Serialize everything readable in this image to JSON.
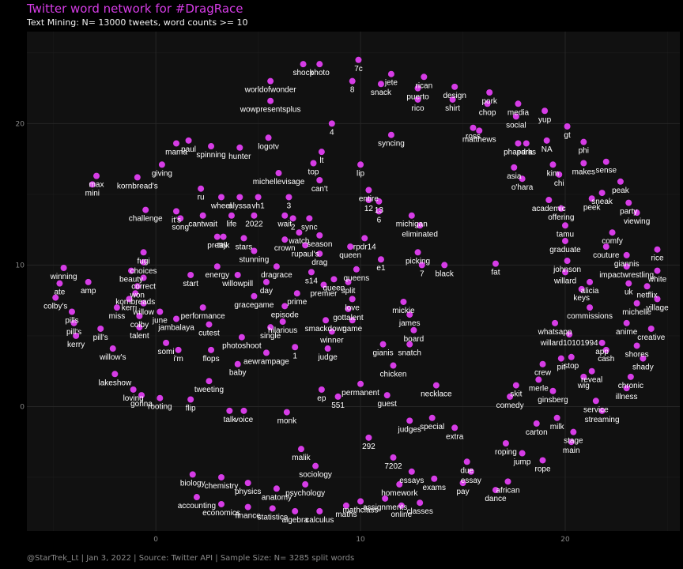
{
  "chart_data": {
    "type": "scatter",
    "title": "Twitter word network for #DragRace",
    "subtitle": "Text Mining:  N= 13000 tweets, word counts >= 10",
    "caption": "@StarTrek_Lt | Jan 3, 2022 | Source: Twitter API | Sample Size: N= 3285 split words",
    "xlim": [
      -6.3,
      25.6
    ],
    "ylim": [
      -8.8,
      26.5
    ],
    "xticks": [
      0,
      10,
      20
    ],
    "yticks": [
      0,
      10,
      20
    ],
    "grid": true,
    "point_color": "#d63ce6",
    "panel_color": "#111111",
    "points": [
      {
        "label": "shock",
        "x": 7.2,
        "y": 24.2
      },
      {
        "label": "photo",
        "x": 8.0,
        "y": 24.2
      },
      {
        "label": "7c",
        "x": 9.9,
        "y": 24.5
      },
      {
        "label": "8",
        "x": 9.6,
        "y": 23.0
      },
      {
        "label": "jete",
        "x": 11.5,
        "y": 23.5
      },
      {
        "label": "snack",
        "x": 11.0,
        "y": 22.8
      },
      {
        "label": "rican",
        "x": 13.1,
        "y": 23.3
      },
      {
        "label": "puerto",
        "x": 12.8,
        "y": 22.5
      },
      {
        "label": "rico",
        "x": 12.8,
        "y": 21.7
      },
      {
        "label": "design",
        "x": 14.6,
        "y": 22.6
      },
      {
        "label": "shirt",
        "x": 14.5,
        "y": 21.7
      },
      {
        "label": "pork",
        "x": 16.3,
        "y": 22.2
      },
      {
        "label": "chop",
        "x": 16.2,
        "y": 21.4
      },
      {
        "label": "media",
        "x": 17.7,
        "y": 21.4
      },
      {
        "label": "social",
        "x": 17.6,
        "y": 20.5
      },
      {
        "label": "yup",
        "x": 19.0,
        "y": 20.9
      },
      {
        "label": "gt",
        "x": 20.1,
        "y": 19.8
      },
      {
        "label": "ross",
        "x": 15.5,
        "y": 19.7
      },
      {
        "label": "matthews",
        "x": 15.8,
        "y": 19.5
      },
      {
        "label": "phaedra",
        "x": 17.7,
        "y": 18.6
      },
      {
        "label": "parks",
        "x": 18.1,
        "y": 18.6
      },
      {
        "label": "NA",
        "x": 19.1,
        "y": 18.8
      },
      {
        "label": "phi",
        "x": 20.9,
        "y": 18.7
      },
      {
        "label": "worldofwonder",
        "x": 5.6,
        "y": 23.0
      },
      {
        "label": "wowpresentsplus",
        "x": 5.6,
        "y": 21.6
      },
      {
        "label": "4",
        "x": 8.6,
        "y": 20.0
      },
      {
        "label": "logotv",
        "x": 5.5,
        "y": 19.0
      },
      {
        "label": "syncing",
        "x": 11.5,
        "y": 19.2
      },
      {
        "label": "paul",
        "x": 1.6,
        "y": 18.8
      },
      {
        "label": "mama",
        "x": 1.0,
        "y": 18.6
      },
      {
        "label": "spinning",
        "x": 2.7,
        "y": 18.4
      },
      {
        "label": "hunter",
        "x": 4.1,
        "y": 18.3
      },
      {
        "label": "lt",
        "x": 8.1,
        "y": 18.0
      },
      {
        "label": "top",
        "x": 7.7,
        "y": 17.2
      },
      {
        "label": "lip",
        "x": 10.0,
        "y": 17.1
      },
      {
        "label": "giving",
        "x": 0.3,
        "y": 17.1
      },
      {
        "label": "max",
        "x": -2.9,
        "y": 16.3
      },
      {
        "label": "mini",
        "x": -3.1,
        "y": 15.7
      },
      {
        "label": "kornbread's",
        "x": -0.9,
        "y": 16.2
      },
      {
        "label": "asia",
        "x": 17.5,
        "y": 16.9
      },
      {
        "label": "o'hara",
        "x": 17.9,
        "y": 16.1
      },
      {
        "label": "kim",
        "x": 19.4,
        "y": 17.1
      },
      {
        "label": "chi",
        "x": 19.7,
        "y": 16.4
      },
      {
        "label": "makes",
        "x": 20.9,
        "y": 17.2
      },
      {
        "label": "sense",
        "x": 22.0,
        "y": 17.3
      },
      {
        "label": "peak",
        "x": 22.7,
        "y": 15.9
      },
      {
        "label": "sneak",
        "x": 21.8,
        "y": 15.1
      },
      {
        "label": "peek",
        "x": 21.3,
        "y": 14.7
      },
      {
        "label": "michellevisage",
        "x": 6.0,
        "y": 16.5
      },
      {
        "label": "can't",
        "x": 8.0,
        "y": 16.0
      },
      {
        "label": "ru",
        "x": 2.2,
        "y": 15.4
      },
      {
        "label": "entire",
        "x": 10.4,
        "y": 15.3
      },
      {
        "label": "12",
        "x": 10.4,
        "y": 14.6
      },
      {
        "label": "13",
        "x": 10.9,
        "y": 14.5
      },
      {
        "label": "6",
        "x": 10.9,
        "y": 13.8
      },
      {
        "label": "wheel",
        "x": 3.2,
        "y": 14.8
      },
      {
        "label": "alyssa",
        "x": 4.1,
        "y": 14.8
      },
      {
        "label": "vh1",
        "x": 5.0,
        "y": 14.8
      },
      {
        "label": "3",
        "x": 6.5,
        "y": 14.8
      },
      {
        "label": "academic",
        "x": 19.2,
        "y": 14.6
      },
      {
        "label": "offering",
        "x": 19.8,
        "y": 14.0
      },
      {
        "label": "party",
        "x": 23.1,
        "y": 14.4
      },
      {
        "label": "viewing",
        "x": 23.5,
        "y": 13.7
      },
      {
        "label": "challenge",
        "x": -0.5,
        "y": 13.9
      },
      {
        "label": "it's",
        "x": 1.0,
        "y": 13.8
      },
      {
        "label": "song",
        "x": 1.2,
        "y": 13.3
      },
      {
        "label": "cantwait",
        "x": 2.3,
        "y": 13.5
      },
      {
        "label": "life",
        "x": 3.7,
        "y": 13.5
      },
      {
        "label": "2022",
        "x": 4.8,
        "y": 13.5
      },
      {
        "label": "wait",
        "x": 6.3,
        "y": 13.5
      },
      {
        "label": "2",
        "x": 6.7,
        "y": 13.3
      },
      {
        "label": "sync",
        "x": 7.5,
        "y": 13.3
      },
      {
        "label": "michigan",
        "x": 12.5,
        "y": 13.5
      },
      {
        "label": "eliminated",
        "x": 12.9,
        "y": 12.8
      },
      {
        "label": "tamu",
        "x": 20.0,
        "y": 12.8
      },
      {
        "label": "comfy",
        "x": 22.3,
        "y": 12.3
      },
      {
        "label": "graduate",
        "x": 20.0,
        "y": 11.7
      },
      {
        "label": "couture",
        "x": 22.0,
        "y": 11.3
      },
      {
        "label": "giannis",
        "x": 23.0,
        "y": 10.7
      },
      {
        "label": "johnson",
        "x": 20.1,
        "y": 10.3
      },
      {
        "label": "rice",
        "x": 24.5,
        "y": 11.1
      },
      {
        "label": "impactwrestling",
        "x": 23.0,
        "y": 9.9
      },
      {
        "label": "white",
        "x": 24.5,
        "y": 9.6
      },
      {
        "label": "willard",
        "x": 20.0,
        "y": 9.5
      },
      {
        "label": "watch",
        "x": 7.0,
        "y": 12.3
      },
      {
        "label": "season",
        "x": 8.0,
        "y": 12.1
      },
      {
        "label": "rpdr14",
        "x": 10.2,
        "y": 11.9
      },
      {
        "label": "queen",
        "x": 9.5,
        "y": 11.3
      },
      {
        "label": "picking",
        "x": 12.8,
        "y": 10.9
      },
      {
        "label": "e1",
        "x": 11.0,
        "y": 10.4
      },
      {
        "label": "7",
        "x": 13.0,
        "y": 10.0
      },
      {
        "label": "black",
        "x": 14.1,
        "y": 10.0
      },
      {
        "label": "fat",
        "x": 16.6,
        "y": 10.1
      },
      {
        "label": "queens",
        "x": 9.8,
        "y": 9.7
      },
      {
        "label": "winning",
        "x": -4.5,
        "y": 9.8
      },
      {
        "label": "ate",
        "x": -4.7,
        "y": 8.7
      },
      {
        "label": "amp",
        "x": -3.3,
        "y": 8.8
      },
      {
        "label": "colby's",
        "x": -4.9,
        "y": 7.7
      },
      {
        "label": "pills",
        "x": -4.1,
        "y": 6.7
      },
      {
        "label": "pill's",
        "x": -4.0,
        "y": 5.9
      },
      {
        "label": "pill's",
        "x": -2.7,
        "y": 5.5
      },
      {
        "label": "kerry",
        "x": -3.9,
        "y": 5.0
      },
      {
        "label": "willow's",
        "x": -2.1,
        "y": 4.1
      },
      {
        "label": "lakeshow",
        "x": -2.0,
        "y": 2.3
      },
      {
        "label": "loving",
        "x": -1.1,
        "y": 1.2
      },
      {
        "label": "gonna",
        "x": -0.7,
        "y": 0.8
      },
      {
        "label": "rooting",
        "x": 0.2,
        "y": 0.6
      },
      {
        "label": "tweeting",
        "x": 2.6,
        "y": 1.8
      },
      {
        "label": "flip",
        "x": 1.7,
        "y": 0.5
      },
      {
        "label": "talk",
        "x": 3.6,
        "y": -0.3
      },
      {
        "label": "voice",
        "x": 4.3,
        "y": -0.3
      },
      {
        "label": "monk",
        "x": 6.4,
        "y": -0.4
      },
      {
        "label": "ep",
        "x": 8.1,
        "y": 1.2
      },
      {
        "label": "551",
        "x": 8.9,
        "y": 0.7
      },
      {
        "label": "permanent",
        "x": 10.0,
        "y": 1.6
      },
      {
        "label": "guest",
        "x": 11.3,
        "y": 0.8
      },
      {
        "label": "chicken",
        "x": 11.6,
        "y": 2.9
      },
      {
        "label": "necklace",
        "x": 13.7,
        "y": 1.5
      },
      {
        "label": "winner",
        "x": 8.6,
        "y": 5.3
      },
      {
        "label": "judge",
        "x": 8.4,
        "y": 4.1
      },
      {
        "label": "1",
        "x": 6.8,
        "y": 4.2
      },
      {
        "label": "baby",
        "x": 4.0,
        "y": 3.0
      },
      {
        "label": "i'm",
        "x": 1.1,
        "y": 4.0
      },
      {
        "label": "flops",
        "x": 2.7,
        "y": 4.0
      },
      {
        "label": "aewrampage",
        "x": 5.4,
        "y": 3.8
      },
      {
        "label": "gianis",
        "x": 11.1,
        "y": 4.4
      },
      {
        "label": "snatch",
        "x": 12.4,
        "y": 4.4
      },
      {
        "label": "board",
        "x": 12.6,
        "y": 5.4
      },
      {
        "label": "mickie",
        "x": 12.1,
        "y": 7.4
      },
      {
        "label": "james",
        "x": 12.4,
        "y": 6.5
      },
      {
        "label": "comedy",
        "x": 17.3,
        "y": 0.7
      },
      {
        "label": "skit",
        "x": 17.6,
        "y": 1.5
      },
      {
        "label": "merle",
        "x": 18.7,
        "y": 1.9
      },
      {
        "label": "ginsberg",
        "x": 19.4,
        "y": 1.1
      },
      {
        "label": "crew",
        "x": 18.9,
        "y": 3.0
      },
      {
        "label": "pit",
        "x": 19.8,
        "y": 3.4
      },
      {
        "label": "stop",
        "x": 20.3,
        "y": 3.5
      },
      {
        "label": "wig",
        "x": 20.9,
        "y": 2.1
      },
      {
        "label": "reveal",
        "x": 21.3,
        "y": 2.5
      },
      {
        "label": "chronic",
        "x": 23.2,
        "y": 2.1
      },
      {
        "label": "illness",
        "x": 23.0,
        "y": 1.3
      },
      {
        "label": "service",
        "x": 21.5,
        "y": 0.4
      },
      {
        "label": "streaming",
        "x": 21.8,
        "y": -0.3
      },
      {
        "label": "milk",
        "x": 19.6,
        "y": -0.8
      },
      {
        "label": "carton",
        "x": 18.6,
        "y": -1.2
      },
      {
        "label": "stage",
        "x": 20.4,
        "y": -1.8
      },
      {
        "label": "main",
        "x": 20.3,
        "y": -2.5
      },
      {
        "label": "cash",
        "x": 22.0,
        "y": 4.0
      },
      {
        "label": "app",
        "x": 21.8,
        "y": 4.5
      },
      {
        "label": "shores",
        "x": 23.5,
        "y": 4.3
      },
      {
        "label": "shady",
        "x": 23.8,
        "y": 3.4
      },
      {
        "label": "anime",
        "x": 23.0,
        "y": 5.9
      },
      {
        "label": "creative",
        "x": 24.2,
        "y": 5.5
      },
      {
        "label": "whatsapp",
        "x": 19.5,
        "y": 5.9
      },
      {
        "label": "willard10101994",
        "x": 20.2,
        "y": 5.1
      },
      {
        "label": "commissions",
        "x": 21.2,
        "y": 7.0
      },
      {
        "label": "michelle",
        "x": 23.5,
        "y": 7.3
      },
      {
        "label": "village",
        "x": 24.5,
        "y": 7.6
      },
      {
        "label": "keys",
        "x": 20.8,
        "y": 8.3
      },
      {
        "label": "alicia",
        "x": 21.2,
        "y": 8.8
      },
      {
        "label": "uk",
        "x": 23.1,
        "y": 8.7
      },
      {
        "label": "netflix",
        "x": 24.0,
        "y": 8.5
      },
      {
        "label": "judges",
        "x": 12.4,
        "y": -1.0
      },
      {
        "label": "special",
        "x": 13.5,
        "y": -0.8
      },
      {
        "label": "extra",
        "x": 14.6,
        "y": -1.5
      },
      {
        "label": "292",
        "x": 10.4,
        "y": -2.2
      },
      {
        "label": "7202",
        "x": 11.6,
        "y": -3.6
      },
      {
        "label": "malik",
        "x": 7.1,
        "y": -3.0
      },
      {
        "label": "sociology",
        "x": 7.8,
        "y": -4.2
      },
      {
        "label": "essays",
        "x": 12.5,
        "y": -4.6
      },
      {
        "label": "exams",
        "x": 13.6,
        "y": -5.1
      },
      {
        "label": "homework",
        "x": 11.9,
        "y": -5.5
      },
      {
        "label": "assignments",
        "x": 11.2,
        "y": -6.5
      },
      {
        "label": "classes",
        "x": 12.9,
        "y": -6.8
      },
      {
        "label": "mathclass",
        "x": 10.0,
        "y": -6.7
      },
      {
        "label": "online",
        "x": 12.0,
        "y": -7.0
      },
      {
        "label": "biology",
        "x": 1.8,
        "y": -4.8
      },
      {
        "label": "chemistry",
        "x": 3.2,
        "y": -5.0
      },
      {
        "label": "physics",
        "x": 4.5,
        "y": -5.4
      },
      {
        "label": "anatomy",
        "x": 5.9,
        "y": -5.8
      },
      {
        "label": "psychology",
        "x": 7.3,
        "y": -5.5
      },
      {
        "label": "accounting",
        "x": 2.0,
        "y": -6.4
      },
      {
        "label": "economics",
        "x": 3.2,
        "y": -6.9
      },
      {
        "label": "finance",
        "x": 4.5,
        "y": -7.1
      },
      {
        "label": "statistics",
        "x": 5.7,
        "y": -7.2
      },
      {
        "label": "algebra",
        "x": 6.8,
        "y": -7.4
      },
      {
        "label": "calculus",
        "x": 8.0,
        "y": -7.4
      },
      {
        "label": "maths",
        "x": 9.3,
        "y": -7.0
      },
      {
        "label": "due",
        "x": 15.2,
        "y": -3.9
      },
      {
        "label": "essay",
        "x": 15.4,
        "y": -4.6
      },
      {
        "label": "pay",
        "x": 15.0,
        "y": -5.4
      },
      {
        "label": "roping",
        "x": 17.1,
        "y": -2.6
      },
      {
        "label": "jump",
        "x": 17.9,
        "y": -3.3
      },
      {
        "label": "rope",
        "x": 18.9,
        "y": -3.8
      },
      {
        "label": "african",
        "x": 17.2,
        "y": -5.3
      },
      {
        "label": "dance",
        "x": 16.6,
        "y": -5.9
      },
      {
        "label": "fugi",
        "x": -0.6,
        "y": 10.9
      },
      {
        "label": "choices",
        "x": -0.6,
        "y": 10.2
      },
      {
        "label": "beauty",
        "x": -1.2,
        "y": 9.6
      },
      {
        "label": "correct",
        "x": -0.6,
        "y": 9.1
      },
      {
        "label": "won",
        "x": -0.9,
        "y": 8.5
      },
      {
        "label": "kornbreads",
        "x": -1.0,
        "y": 8.0
      },
      {
        "label": "kerri",
        "x": -1.3,
        "y": 7.6
      },
      {
        "label": "miss",
        "x": -1.9,
        "y": 7.0
      },
      {
        "label": "willow",
        "x": -0.6,
        "y": 7.3
      },
      {
        "label": "colby",
        "x": -0.8,
        "y": 6.4
      },
      {
        "label": "talent",
        "x": -0.8,
        "y": 5.6
      },
      {
        "label": "june",
        "x": 0.2,
        "y": 6.7
      },
      {
        "label": "jambalaya",
        "x": 1.0,
        "y": 6.2
      },
      {
        "label": "somi",
        "x": 0.5,
        "y": 4.5
      },
      {
        "label": "start",
        "x": 1.7,
        "y": 9.3
      },
      {
        "label": "energy",
        "x": 3.0,
        "y": 9.9
      },
      {
        "label": "willowpill",
        "x": 4.0,
        "y": 9.3
      },
      {
        "label": "day",
        "x": 5.4,
        "y": 8.8
      },
      {
        "label": "performance",
        "x": 2.3,
        "y": 7.0
      },
      {
        "label": "gracegame",
        "x": 4.8,
        "y": 7.8
      },
      {
        "label": "episode",
        "x": 6.3,
        "y": 7.1
      },
      {
        "label": "prime",
        "x": 6.9,
        "y": 8.0
      },
      {
        "label": "premier",
        "x": 8.2,
        "y": 8.6
      },
      {
        "label": "split",
        "x": 9.4,
        "y": 8.8
      },
      {
        "label": "love",
        "x": 9.6,
        "y": 7.6
      },
      {
        "label": "gottalent",
        "x": 9.4,
        "y": 6.9
      },
      {
        "label": "smackdown",
        "x": 8.3,
        "y": 6.1
      },
      {
        "label": "game",
        "x": 9.6,
        "y": 6.1
      },
      {
        "label": "cutest",
        "x": 2.6,
        "y": 5.8
      },
      {
        "label": "photoshoot",
        "x": 4.2,
        "y": 4.9
      },
      {
        "label": "single",
        "x": 5.6,
        "y": 5.6
      },
      {
        "label": "hilarious",
        "x": 6.2,
        "y": 6.0
      },
      {
        "label": "talk",
        "x": 3.3,
        "y": 12.0
      },
      {
        "label": "pretty",
        "x": 3.0,
        "y": 12.0
      },
      {
        "label": "stars",
        "x": 4.3,
        "y": 11.9
      },
      {
        "label": "stunning",
        "x": 4.8,
        "y": 11.0
      },
      {
        "label": "crown",
        "x": 6.3,
        "y": 11.8
      },
      {
        "label": "rupaul's",
        "x": 7.3,
        "y": 11.4
      },
      {
        "label": "drag",
        "x": 8.0,
        "y": 10.8
      },
      {
        "label": "dragrace",
        "x": 5.9,
        "y": 9.9
      },
      {
        "label": "s14",
        "x": 7.6,
        "y": 9.5
      },
      {
        "label": "queen",
        "x": 8.7,
        "y": 9.0
      }
    ]
  }
}
